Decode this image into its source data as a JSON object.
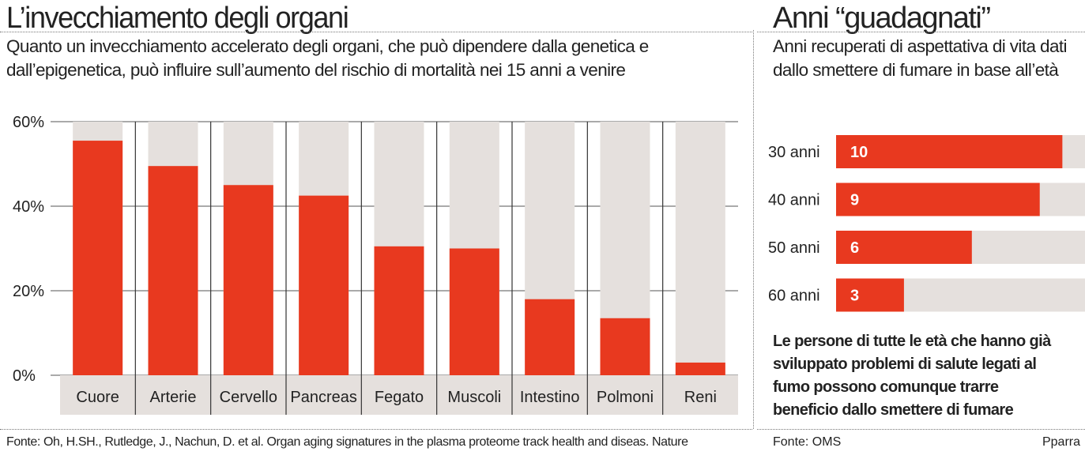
{
  "left": {
    "title": "L’invecchiamento degli organi",
    "subtitle": "Quanto un invecchiamento accelerato degli organi, che può dipendere dalla genetica e dall’epigenetica, può influire sull’aumento del rischio di mortalità nei 15 anni a venire",
    "source": "Fonte: Oh, H.SH., Rutledge, J., Nachun, D. et al. Organ aging signatures in the plasma proteome track health and diseas. Nature"
  },
  "right": {
    "title": "Anni “guadagnati”",
    "subtitle": "Anni recuperati di aspettativa di vita dati dallo smettere di fumare in base all’età",
    "note": "Le persone di tutte le età che hanno già sviluppato problemi di salute legati al fumo possono comunque trarre beneficio dallo smettere di fumare",
    "source": "Fonte: OMS",
    "credit": "Pparra"
  },
  "colors": {
    "bar": "#e8391f",
    "track": "#e5e0dd",
    "label_bg": "#e5e0dd",
    "text": "#222222"
  },
  "chart_data": [
    {
      "type": "bar",
      "title": "L’invecchiamento degli organi",
      "categories": [
        "Cuore",
        "Arterie",
        "Cervello",
        "Pancreas",
        "Fegato",
        "Muscoli",
        "Intestino",
        "Polmoni",
        "Reni"
      ],
      "values": [
        55.5,
        49.5,
        45,
        42.5,
        30.5,
        30,
        18,
        13.5,
        3
      ],
      "max": 60,
      "ylim": [
        0,
        60
      ],
      "yticks": [
        "0%",
        "20%",
        "40%",
        "60%"
      ],
      "grid": false
    },
    {
      "type": "bar",
      "orientation": "horizontal",
      "title": "Anni “guadagnati”",
      "categories": [
        "30 anni",
        "40 anni",
        "50 anni",
        "60 anni"
      ],
      "values": [
        10,
        9,
        6,
        3
      ],
      "labels": [
        "10",
        "9",
        "6",
        "3"
      ],
      "max": 11
    }
  ]
}
